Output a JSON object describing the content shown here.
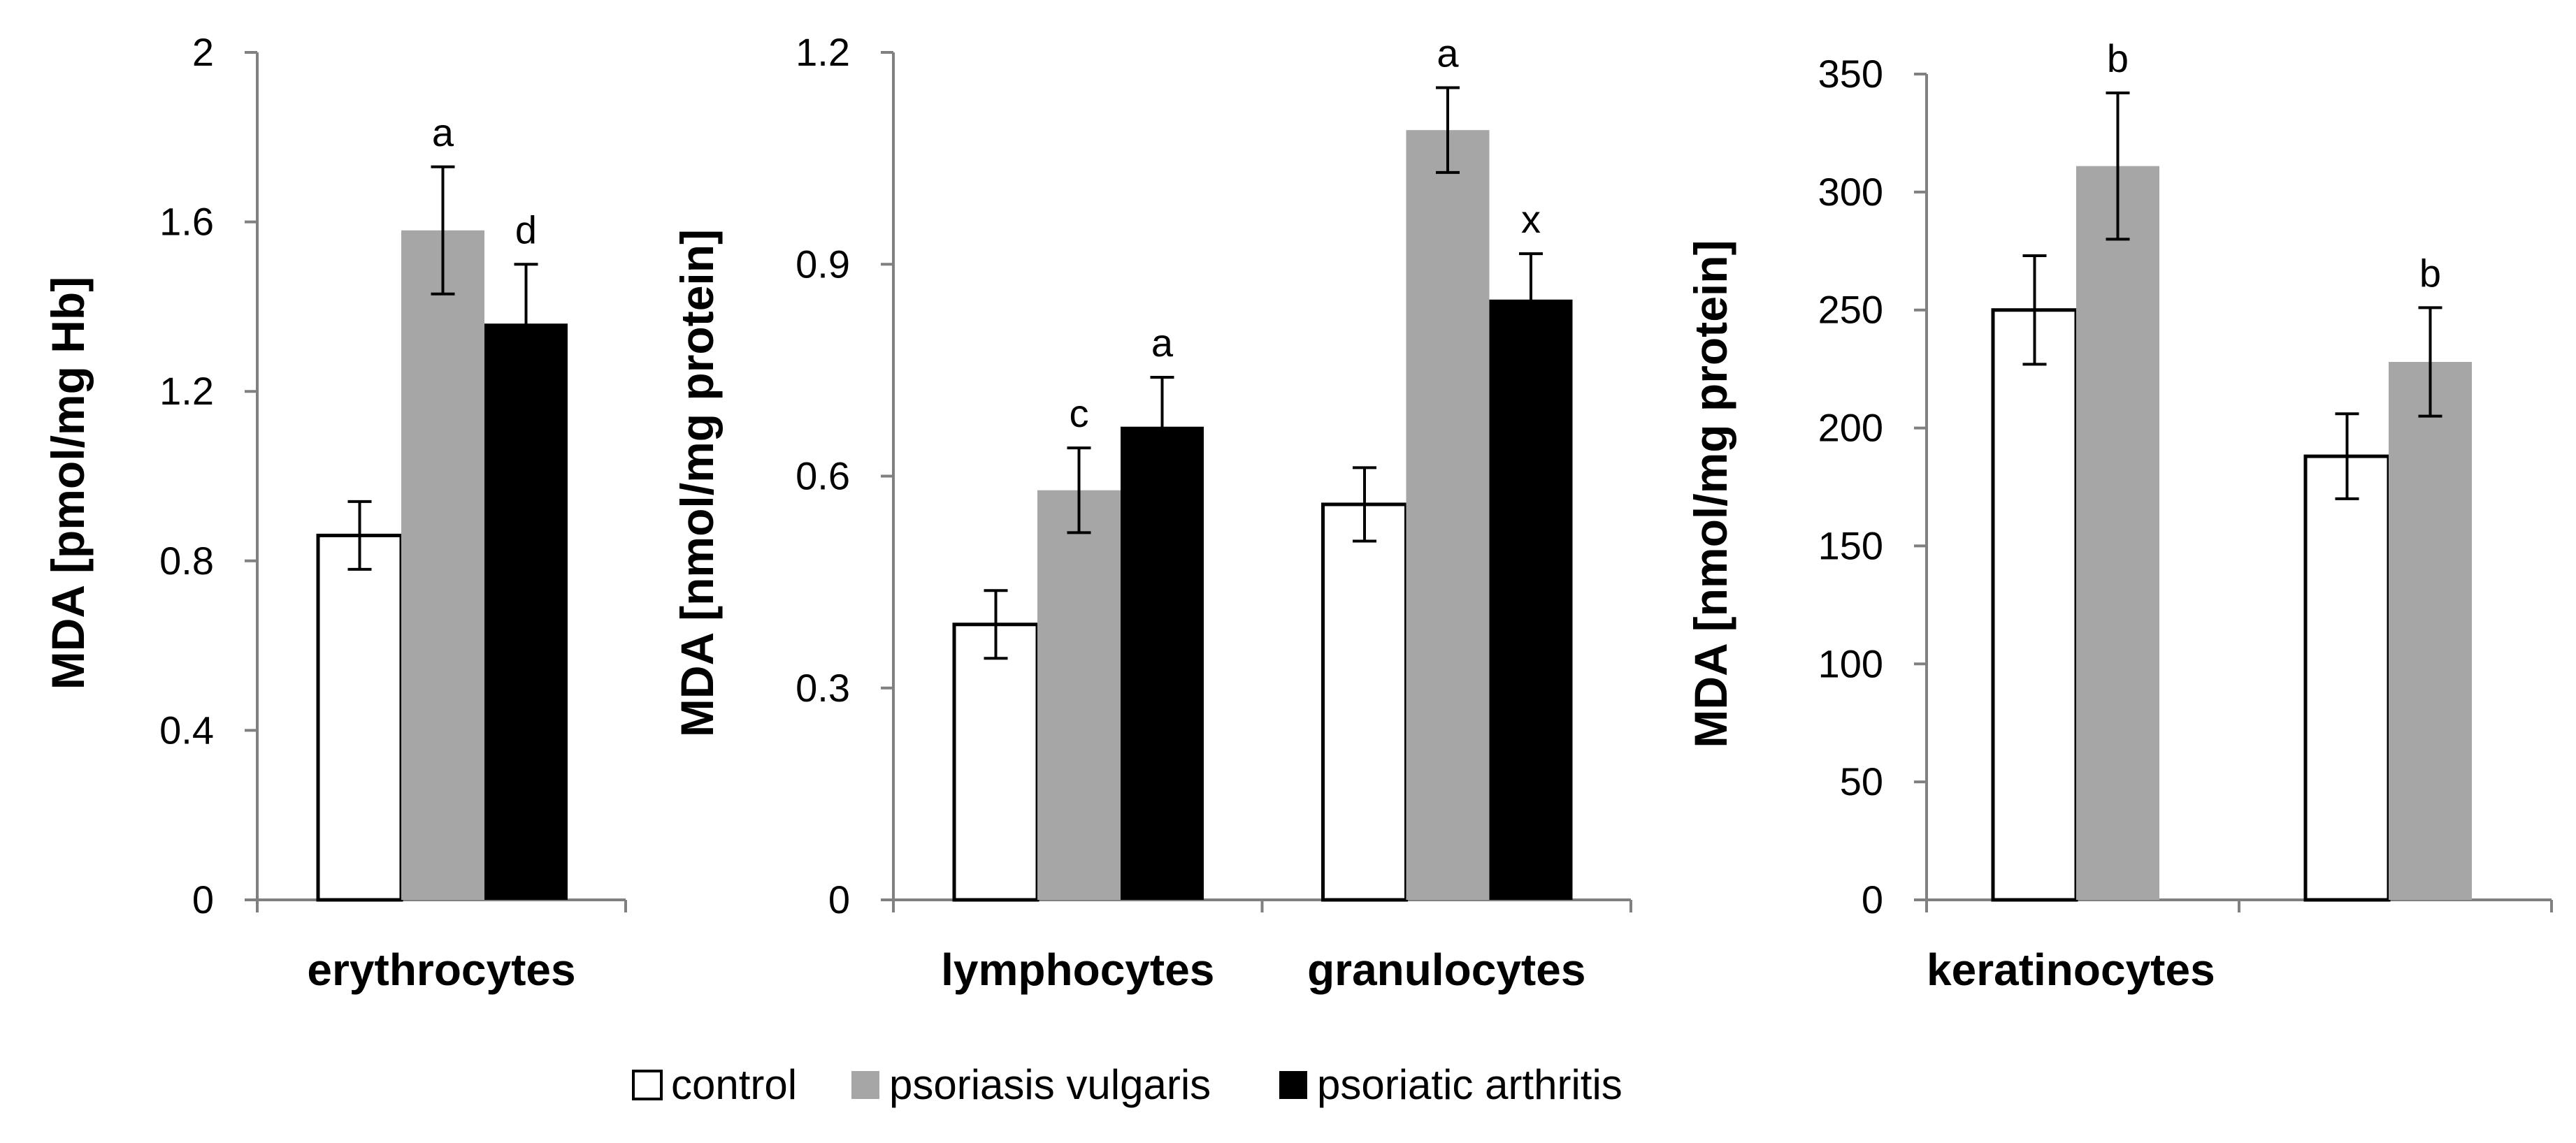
{
  "chart_data": [
    {
      "type": "bar",
      "title": "",
      "ylabel": "MDA [pmol/mg Hb]",
      "ylim": [
        0,
        2
      ],
      "yticks": [
        "0",
        "0.4",
        "0.8",
        "1.2",
        "1.6",
        "2"
      ],
      "categories": [
        "erythrocytes"
      ],
      "series": [
        {
          "name": "control",
          "values": [
            0.86
          ],
          "errors": [
            0.08
          ],
          "labels": [
            ""
          ]
        },
        {
          "name": "psoriasis vulgaris",
          "values": [
            1.58
          ],
          "errors": [
            0.15
          ],
          "labels": [
            "a"
          ]
        },
        {
          "name": "psoriatic arthritis",
          "values": [
            1.36
          ],
          "errors": [
            0.14
          ],
          "labels": [
            "d"
          ]
        }
      ]
    },
    {
      "type": "bar",
      "title": "",
      "ylabel": "MDA [nmol/mg protein]",
      "ylim": [
        0,
        1.2
      ],
      "yticks": [
        "0",
        "0.3",
        "0.6",
        "0.9",
        "1.2"
      ],
      "categories": [
        "lymphocytes",
        "granulocytes"
      ],
      "series": [
        {
          "name": "control",
          "values": [
            0.39,
            0.56
          ],
          "errors": [
            0.048,
            0.052
          ],
          "labels": [
            "",
            ""
          ]
        },
        {
          "name": "psoriasis vulgaris",
          "values": [
            0.58,
            1.09
          ],
          "errors": [
            0.06,
            0.06
          ],
          "labels": [
            "c",
            "a"
          ]
        },
        {
          "name": "psoriatic arthritis",
          "values": [
            0.67,
            0.85
          ],
          "errors": [
            0.07,
            0.065
          ],
          "labels": [
            "a",
            "x"
          ]
        }
      ]
    },
    {
      "type": "bar",
      "title": "",
      "ylabel": "MDA [nmol/mg protein]",
      "ylim": [
        0,
        350
      ],
      "yticks": [
        "0",
        "50",
        "100",
        "150",
        "200",
        "250",
        "300",
        "350"
      ],
      "categories": [
        "keratinocytes",
        ""
      ],
      "series": [
        {
          "name": "control",
          "values": [
            250,
            188
          ],
          "errors": [
            23,
            18
          ],
          "labels": [
            "",
            ""
          ]
        },
        {
          "name": "psoriasis vulgaris",
          "values": [
            311,
            228
          ],
          "errors": [
            31,
            23
          ],
          "labels": [
            "b",
            "b"
          ]
        }
      ]
    }
  ],
  "legend": {
    "entries": [
      {
        "label": "control",
        "color": "#ffffff"
      },
      {
        "label": "psoriasis vulgaris",
        "color": "#a6a6a6"
      },
      {
        "label": "psoriatic arthritis",
        "color": "#000000"
      }
    ]
  }
}
